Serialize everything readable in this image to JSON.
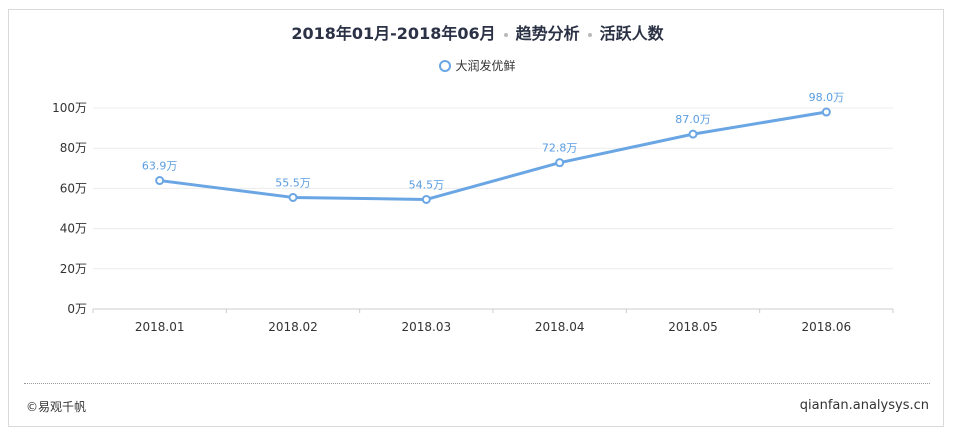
{
  "header": {
    "period": "2018年01月-2018年06月",
    "category": "趋势分析",
    "metric": "活跃人数"
  },
  "footer": {
    "copyright": "©易观千帆",
    "site": "qianfan.analysys.cn"
  },
  "colors": {
    "series": "#6aa6e4",
    "label": "#5a9de0",
    "grid": "#ececec",
    "axis": "#cccccc"
  },
  "chart_data": {
    "type": "line",
    "categories": [
      "2018.01",
      "2018.02",
      "2018.03",
      "2018.04",
      "2018.05",
      "2018.06"
    ],
    "series": [
      {
        "name": "大润发优鲜",
        "values": [
          63.9,
          55.5,
          54.5,
          72.8,
          87.0,
          98.0
        ],
        "labels": [
          "63.9万",
          "55.5万",
          "54.5万",
          "72.8万",
          "87.0万",
          "98.0万"
        ]
      }
    ],
    "yticks": [
      0,
      20,
      40,
      60,
      80,
      100
    ],
    "yticklabels": [
      "0万",
      "20万",
      "40万",
      "60万",
      "80万",
      "100万"
    ],
    "ylim": [
      0,
      100
    ],
    "grid": true,
    "legend": "top-center"
  }
}
